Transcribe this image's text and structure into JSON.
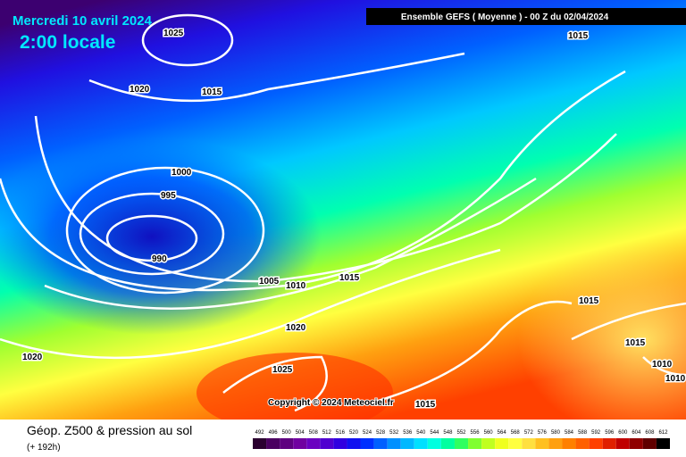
{
  "title": "Mercredi 10 avril 2024",
  "subtitle": "2:00 locale",
  "header": "Ensemble GEFS  ( Moyenne )  - 00 Z du 02/04/2024",
  "isobar_labels": [
    "1025",
    "1020",
    "1015",
    "1015",
    "1000",
    "995",
    "990",
    "1005",
    "1010",
    "1015",
    "1020",
    "1025",
    "1020",
    "1015",
    "1015",
    "1015",
    "1010",
    "1010"
  ],
  "copyright": "Copyright © 2024 Meteociel.fr",
  "footer_title": "Géop. Z500 & pression au sol",
  "footer_subtitle": "(+ 192h)",
  "scale": {
    "values": [
      492,
      496,
      500,
      504,
      508,
      512,
      516,
      520,
      524,
      528,
      532,
      536,
      540,
      544,
      548,
      552,
      556,
      560,
      564,
      568,
      572,
      576,
      580,
      584,
      588,
      592,
      596,
      600,
      604,
      608,
      612
    ],
    "colors": [
      "#2b0030",
      "#4a0060",
      "#5e0080",
      "#7000a0",
      "#6a00c0",
      "#5000d0",
      "#3000e0",
      "#1010f0",
      "#0030ff",
      "#0060ff",
      "#0090ff",
      "#00b8ff",
      "#00e0ff",
      "#00ffe0",
      "#00ffa0",
      "#30ff60",
      "#80ff30",
      "#c0ff20",
      "#f0ff20",
      "#ffff40",
      "#ffe040",
      "#ffc020",
      "#ffa010",
      "#ff8000",
      "#ff6000",
      "#ff4000",
      "#e02000",
      "#c00000",
      "#900000",
      "#600000",
      "#000000"
    ]
  }
}
